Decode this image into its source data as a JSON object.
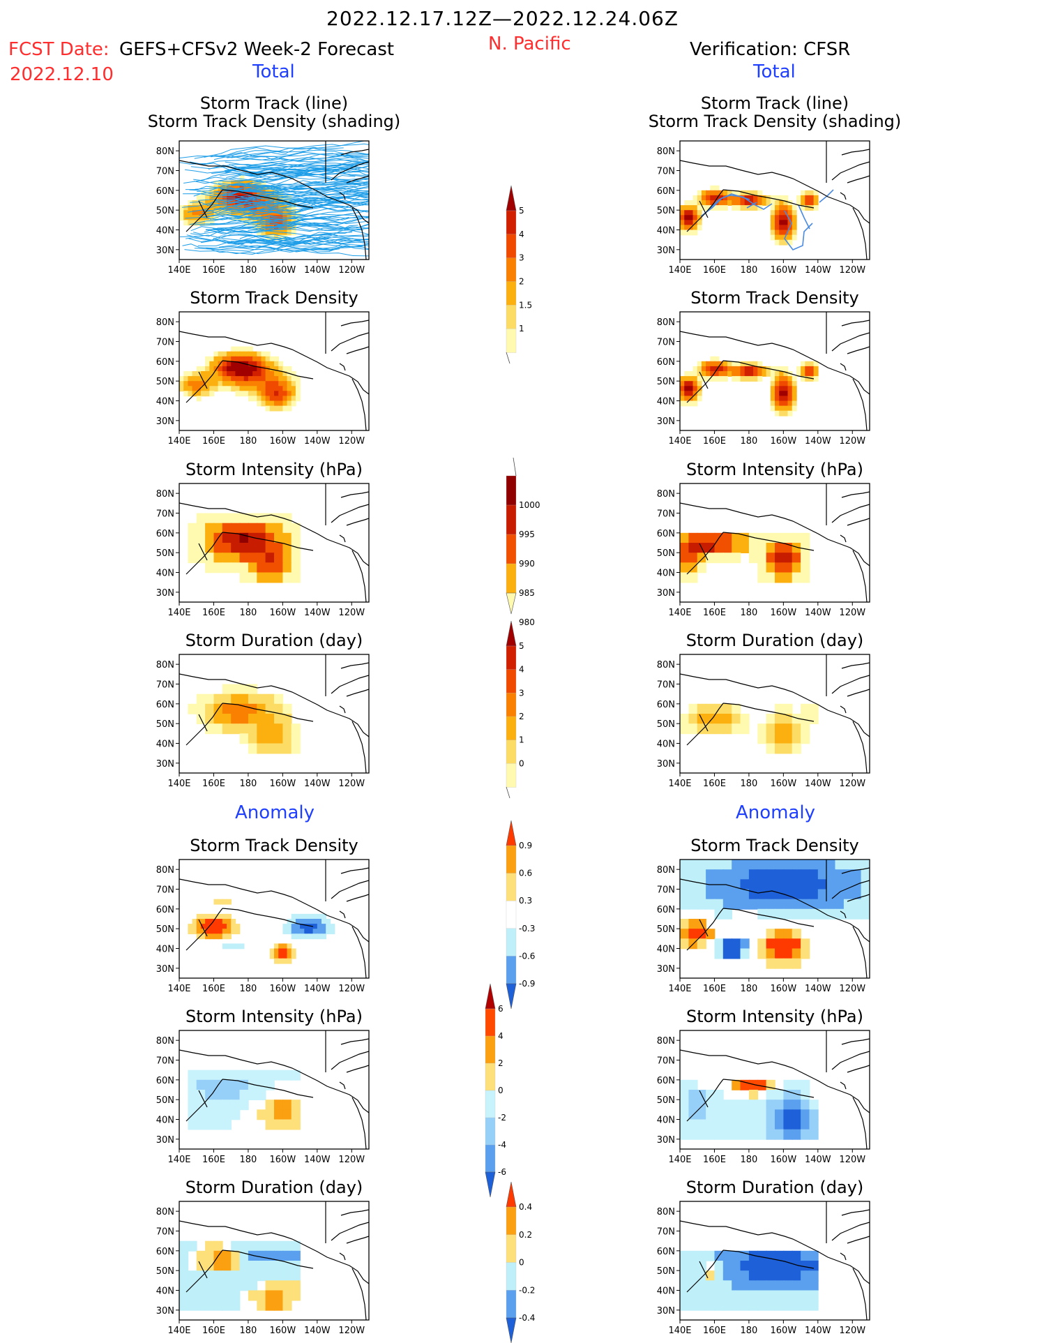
{
  "header": {
    "date_range": "2022.12.17.12Z—2022.12.24.06Z",
    "fcst_label": "FCST Date:",
    "fcst_model": "GEFS+CFSv2 Week-2 Forecast",
    "fcst_date": "2022.12.10",
    "region": "N. Pacific",
    "verification": "Verification: CFSR",
    "total_left": "Total",
    "total_right": "Total",
    "anomaly_left": "Anomaly",
    "anomaly_right": "Anomaly"
  },
  "colors": {
    "title_red": "#ff2d2d",
    "title_blue": "#1f3fff",
    "track_line": "#1f9ee8"
  },
  "axes": {
    "lat_labels": [
      "80N",
      "70N",
      "60N",
      "50N",
      "40N",
      "30N"
    ],
    "lon_labels": [
      "140E",
      "160E",
      "180",
      "160W",
      "140W",
      "120W"
    ]
  },
  "panels": [
    {
      "title1": "Storm Track (line)",
      "title2": "Storm Track Density (shading)",
      "field": "track_fcst"
    },
    {
      "title1": "Storm Track (line)",
      "title2": "Storm Track Density (shading)",
      "field": "track_obs"
    },
    {
      "title1": "Storm Track Density",
      "field": "dens_fcst"
    },
    {
      "title1": "Storm Track Density",
      "field": "dens_obs"
    },
    {
      "title1": "Storm Intensity (hPa)",
      "field": "int_fcst"
    },
    {
      "title1": "Storm Intensity (hPa)",
      "field": "int_obs"
    },
    {
      "title1": "Storm Duration (day)",
      "field": "dur_fcst"
    },
    {
      "title1": "Storm Duration (day)",
      "field": "dur_obs"
    },
    {
      "title1": "Storm Track Density",
      "field": "adens_fcst"
    },
    {
      "title1": "Storm Track Density",
      "field": "adens_obs"
    },
    {
      "title1": "Storm Intensity (hPa)",
      "field": "aint_fcst"
    },
    {
      "title1": "Storm Intensity (hPa)",
      "field": "aint_obs"
    },
    {
      "title1": "Storm Duration (day)",
      "field": "adur_fcst"
    },
    {
      "title1": "Storm Duration (day)",
      "field": "adur_obs"
    }
  ],
  "colorbars": [
    {
      "name": "density",
      "labels": [
        "5",
        "4",
        "3",
        "2",
        "1.5",
        "1"
      ],
      "colors": [
        "#fffab0",
        "#fddc66",
        "#fbb010",
        "#f98000",
        "#f04a00",
        "#d02000",
        "#a00000"
      ],
      "arrow_top": true,
      "arrow_bottom": false
    },
    {
      "name": "intensity",
      "labels": [
        "1000",
        "995",
        "990",
        "985",
        "980"
      ],
      "colors": [
        "#fffab0",
        "#fbb010",
        "#f05000",
        "#c81c00",
        "#900000"
      ],
      "arrow_top": false,
      "arrow_bottom": true
    },
    {
      "name": "duration",
      "labels": [
        "5",
        "4",
        "3",
        "2",
        "1",
        "0"
      ],
      "colors": [
        "#fffab0",
        "#fddc66",
        "#fbb010",
        "#f98000",
        "#f04a00",
        "#d02000",
        "#a00000"
      ],
      "arrow_top": true,
      "arrow_bottom": false
    },
    {
      "name": "anom_density",
      "labels": [
        "0.9",
        "0.6",
        "0.3",
        "-0.3",
        "-0.6",
        "-0.9"
      ],
      "colors": [
        "#1e60d8",
        "#5aa0ee",
        "#bff0fa",
        "#ffffff",
        "#fde07a",
        "#fba010",
        "#ff3a00"
      ],
      "arrow_top": true,
      "arrow_bottom": true
    },
    {
      "name": "anom_intensity",
      "labels": [
        "6",
        "4",
        "2",
        "0",
        "-2",
        "-4",
        "-6"
      ],
      "colors": [
        "#1e60d8",
        "#5aa0ee",
        "#96d0f8",
        "#c8f2fc",
        "#fde07a",
        "#fba010",
        "#ff4a00",
        "#b00000"
      ],
      "arrow_top": true,
      "arrow_bottom": true
    },
    {
      "name": "anom_duration",
      "labels": [
        "0.4",
        "0.2",
        "0",
        "-0.2",
        "-0.4"
      ],
      "colors": [
        "#1e60d8",
        "#5aa0ee",
        "#bff0fa",
        "#fde07a",
        "#fba010",
        "#ff3a00"
      ],
      "arrow_top": true,
      "arrow_bottom": true
    }
  ]
}
